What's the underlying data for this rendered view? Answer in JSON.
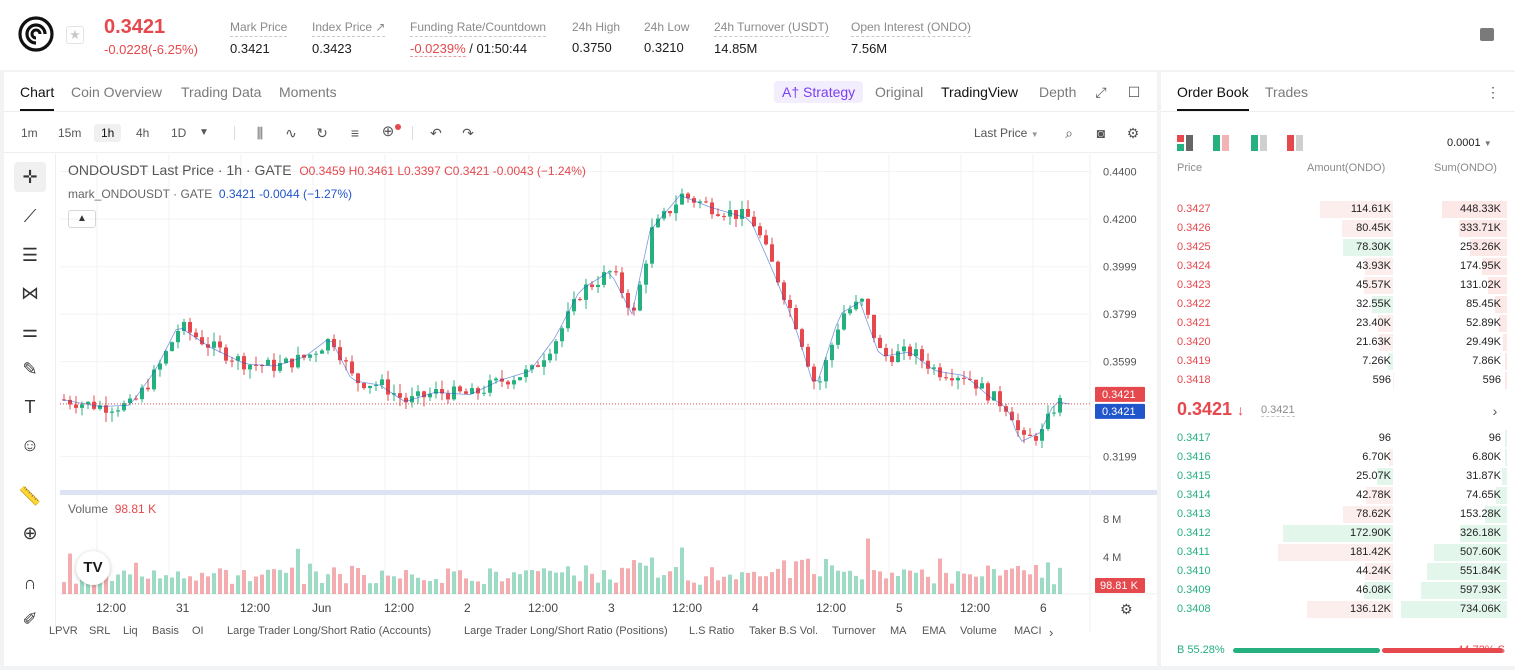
{
  "header": {
    "price": "0.3421",
    "change": "-0.0228(-6.25%)",
    "stats": [
      {
        "label": "Mark Price",
        "value": "0.3421"
      },
      {
        "label": "Index Price ↗",
        "value": "0.3423"
      },
      {
        "label": "Funding Rate/Countdown",
        "value_red": "-0.0239%",
        "value": " / 01:50:44"
      },
      {
        "label": "24h High",
        "value": "0.3750"
      },
      {
        "label": "24h Low",
        "value": "0.3210"
      },
      {
        "label": "24h Turnover (USDT)",
        "value": "14.85M"
      },
      {
        "label": "Open Interest (ONDO)",
        "value": "7.56M"
      }
    ]
  },
  "chart_tabs": {
    "tabs": [
      "Chart",
      "Coin Overview",
      "Trading Data",
      "Moments"
    ],
    "strategy": "A† Strategy",
    "views": [
      "Original",
      "TradingView",
      "Depth"
    ]
  },
  "toolbar": {
    "timeframes": [
      "1m",
      "15m",
      "1h",
      "4h",
      "1D"
    ],
    "price_type": "Last Price"
  },
  "legend": {
    "title": "ONDOUSDT Last Price · 1h · GATE",
    "ohlc": "O0.3459  H0.3461  L0.3397  C0.3421  -0.0043 (−1.24%)",
    "mark_label": "mark_ONDOUSDT · GATE",
    "mark_vals": "0.3421  -0.0044 (−1.27%)",
    "volume_label": "Volume",
    "volume_val": "98.81 K"
  },
  "price_axis": [
    "0.4400",
    "0.4200",
    "0.3999",
    "0.3799",
    "0.3599",
    "0.3199"
  ],
  "last_tag": "0.3421",
  "mark_tag": "0.3421",
  "volume_axis": [
    "8 M",
    "4 M"
  ],
  "volume_tag": "98.81 K",
  "time_axis": [
    "12:00",
    "31",
    "12:00",
    "Jun",
    "12:00",
    "2",
    "12:00",
    "3",
    "12:00",
    "4",
    "12:00",
    "5",
    "12:00",
    "6"
  ],
  "indicators": [
    "LPVR",
    "SRL",
    "Liq",
    "Basis",
    "OI",
    "Large Trader Long/Short Ratio (Accounts)",
    "Large Trader Long/Short Ratio (Positions)",
    "L.S Ratio",
    "Taker B.S Vol.",
    "Turnover",
    "MA",
    "EMA",
    "Volume",
    "MACI"
  ],
  "orderbook": {
    "tabs": [
      "Order Book",
      "Trades"
    ],
    "precision": "0.0001",
    "headers": [
      "Price",
      "Amount(ONDO)",
      "Sum(ONDO)"
    ],
    "asks": [
      {
        "price": "0.3427",
        "amount": "114.61K",
        "sum": "448.33K"
      },
      {
        "price": "0.3426",
        "amount": "80.45K",
        "sum": "333.71K"
      },
      {
        "price": "0.3425",
        "amount": "78.30K",
        "sum": "253.26K"
      },
      {
        "price": "0.3424",
        "amount": "43.93K",
        "sum": "174.95K"
      },
      {
        "price": "0.3423",
        "amount": "45.57K",
        "sum": "131.02K"
      },
      {
        "price": "0.3422",
        "amount": "32.55K",
        "sum": "85.45K"
      },
      {
        "price": "0.3421",
        "amount": "23.40K",
        "sum": "52.89K"
      },
      {
        "price": "0.3420",
        "amount": "21.63K",
        "sum": "29.49K"
      },
      {
        "price": "0.3419",
        "amount": "7.26K",
        "sum": "7.86K"
      },
      {
        "price": "0.3418",
        "amount": "596",
        "sum": "596"
      }
    ],
    "mid_price": "0.3421",
    "mid_mark": "0.3421",
    "bids": [
      {
        "price": "0.3417",
        "amount": "96",
        "sum": "96"
      },
      {
        "price": "0.3416",
        "amount": "6.70K",
        "sum": "6.80K"
      },
      {
        "price": "0.3415",
        "amount": "25.07K",
        "sum": "31.87K"
      },
      {
        "price": "0.3414",
        "amount": "42.78K",
        "sum": "74.65K"
      },
      {
        "price": "0.3413",
        "amount": "78.62K",
        "sum": "153.28K"
      },
      {
        "price": "0.3412",
        "amount": "172.90K",
        "sum": "326.18K"
      },
      {
        "price": "0.3411",
        "amount": "181.42K",
        "sum": "507.60K"
      },
      {
        "price": "0.3410",
        "amount": "44.24K",
        "sum": "551.84K"
      },
      {
        "price": "0.3409",
        "amount": "46.08K",
        "sum": "597.93K"
      },
      {
        "price": "0.3408",
        "amount": "136.12K",
        "sum": "734.06K"
      }
    ],
    "buy_ratio": "B 55.28%",
    "sell_ratio": "44.72% S",
    "buy_pct": 55.28
  },
  "colors": {
    "up": "#26b07f",
    "down": "#e5484d",
    "mark": "#2155cc",
    "accent": "#7b3ff2"
  },
  "icons": [
    "logo-icon",
    "star-icon",
    "expand-icon",
    "fullscreen-icon",
    "candle-type-icon",
    "indicator-icon",
    "replay-icon",
    "template-icon",
    "add-indicator-icon",
    "undo-icon",
    "redo-icon",
    "search-icon",
    "camera-icon",
    "gear-icon",
    "more-icon"
  ]
}
